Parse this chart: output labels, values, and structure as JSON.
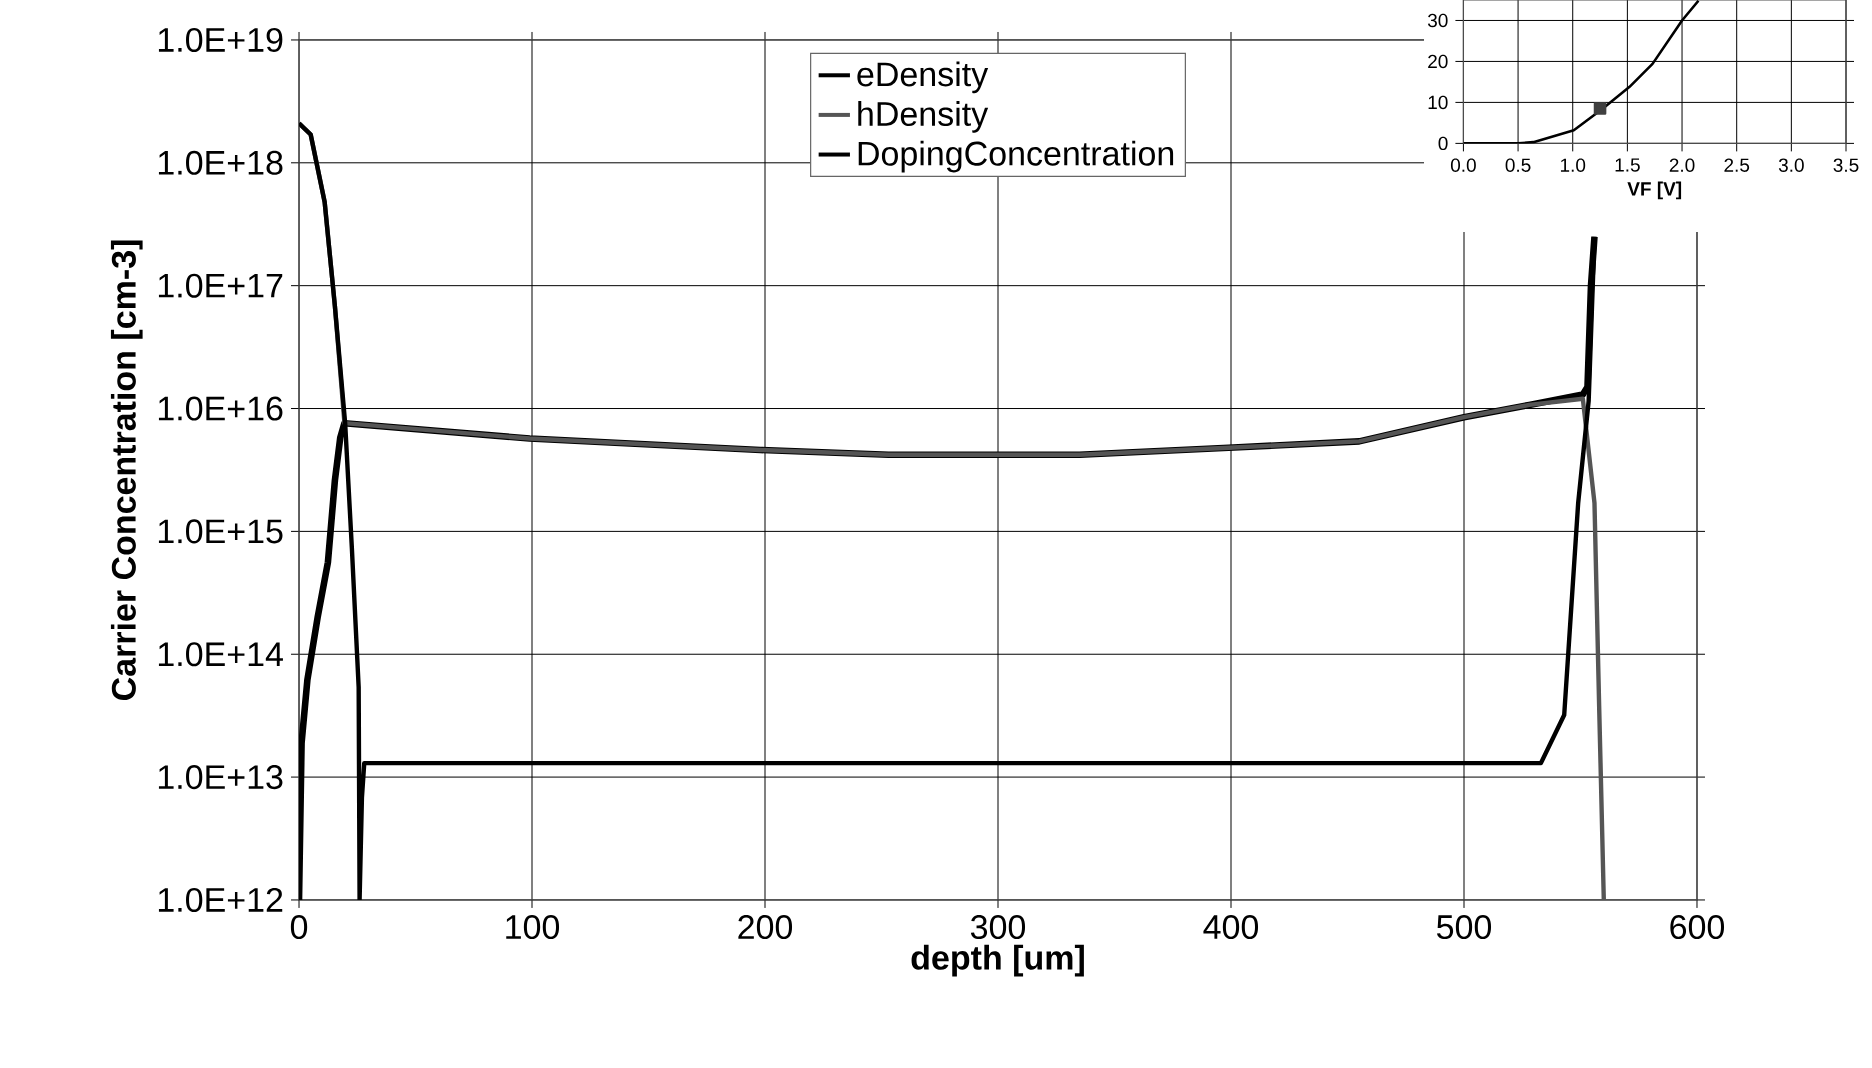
{
  "chart_data": [
    {
      "type": "line",
      "xlabel": "depth [um]",
      "ylabel": "Carrier Concentration [cm-3]",
      "log": "y",
      "grid": true,
      "legend": "top",
      "line_style": "solid",
      "marker": "none",
      "xlim": [
        0,
        600
      ],
      "xticks": [
        0,
        100,
        200,
        300,
        400,
        500,
        600
      ],
      "ylim": [
        1000000000000.0,
        1e+19
      ],
      "yticks": [
        {
          "value": 1000000000000.0,
          "label": "1.0E+12"
        },
        {
          "value": 10000000000000.0,
          "label": "1.0E+13"
        },
        {
          "value": 100000000000000.0,
          "label": "1.0E+14"
        },
        {
          "value": 1000000000000000.0,
          "label": "1.0E+15"
        },
        {
          "value": 1e+16,
          "label": "1.0E+16"
        },
        {
          "value": 1e+17,
          "label": "1.0E+17"
        },
        {
          "value": 1e+18,
          "label": "1.0E+18"
        },
        {
          "value": 1e+19,
          "label": "1.0E+19"
        }
      ],
      "series": [
        {
          "name": "eDensity",
          "color": "#000000",
          "x": [
            0,
            1.1,
            3.6,
            8,
            12.4,
            15.4,
            17.7,
            19.5,
            99,
            198,
            253,
            300,
            335,
            399,
            455,
            500,
            528,
            551,
            553,
            554.5,
            556
          ],
          "values": [
            1000000000000.0,
            19000000000000.0,
            62000000000000.0,
            200000000000000.0,
            560000000000000.0,
            2600000000000000.0,
            5800000000000000.0,
            7600000000000000.0,
            5700000000000000.0,
            4600000000000000.0,
            4200000000000000.0,
            4200000000000000.0,
            4200000000000000.0,
            4800000000000000.0,
            5400000000000000.0,
            8500000000000000.0,
            1.07e+16,
            1.3e+16,
            1.5e+16,
            1e+17,
            2.5e+17
          ]
        },
        {
          "name": "hDensity",
          "color": "#555555",
          "x": [
            0,
            5,
            11,
            15.4,
            19.5,
            99,
            198,
            253,
            300,
            335,
            399,
            455,
            500,
            528,
            551,
            556,
            558,
            560
          ],
          "values": [
            2.1e+18,
            1.7e+18,
            4.8e+17,
            6.8e+16,
            7600000000000000.0,
            5700000000000000.0,
            4600000000000000.0,
            4200000000000000.0,
            4200000000000000.0,
            4200000000000000.0,
            4800000000000000.0,
            5400000000000000.0,
            8500000000000000.0,
            1.07e+16,
            1.2e+16,
            1700000000000000.0,
            38000000000000.0,
            1000000000000.0
          ]
        },
        {
          "name": "DopingConcentration",
          "color": "#000000",
          "x": [
            0,
            5,
            11,
            15.4,
            19.8,
            22.7,
            25.6,
            26,
            27,
            28,
            100,
            300,
            533,
            543,
            549,
            553.5,
            556
          ],
          "values": [
            2.1e+18,
            1.7e+18,
            4.8e+17,
            6.8e+16,
            7600000000000000.0,
            720000000000000.0,
            54000000000000.0,
            1000000000000.0,
            6800000000000.0,
            13000000000000.0,
            13000000000000.0,
            13000000000000.0,
            13000000000000.0,
            32000000000000.0,
            1700000000000000.0,
            1.15e+16,
            2.5e+17
          ]
        }
      ]
    },
    {
      "type": "line",
      "xlabel": "VF [V]",
      "grid": true,
      "xlim": [
        0,
        3.5
      ],
      "xticks": [
        {
          "value": 0,
          "label": "0.0"
        },
        {
          "value": 0.5,
          "label": "0.5"
        },
        {
          "value": 1,
          "label": "1.0"
        },
        {
          "value": 1.5,
          "label": "1.5"
        },
        {
          "value": 2,
          "label": "2.0"
        },
        {
          "value": 2.5,
          "label": "2.5"
        },
        {
          "value": 3,
          "label": "3.0"
        },
        {
          "value": 3.5,
          "label": "3.5"
        }
      ],
      "ylim": [
        0,
        35
      ],
      "yticks": [
        0,
        10,
        20,
        30
      ],
      "series": [
        {
          "color": "#000000",
          "x": [
            0,
            0.5,
            0.64,
            1.01,
            1.27,
            1.52,
            1.73,
            2.0,
            2.15
          ],
          "values": [
            0,
            0,
            0.3,
            3.2,
            8.4,
            13.8,
            19.4,
            30,
            34.8
          ]
        },
        {
          "type": "scatter",
          "marker": "square",
          "color": "#404040",
          "x": [
            1.25
          ],
          "values": [
            8.5
          ]
        }
      ]
    }
  ]
}
